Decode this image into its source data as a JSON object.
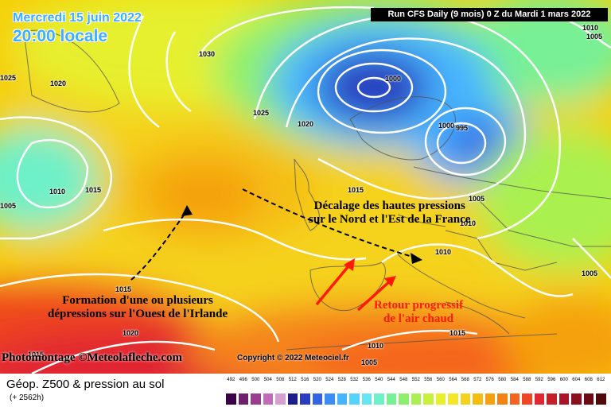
{
  "header": {
    "date": "Mercredi 15 juin 2022",
    "time": "20:00 locale",
    "run": "Run CFS Daily (9 mois) 0 Z du Mardi 1 mars 2022"
  },
  "isobar_labels": [
    "1030",
    "1025",
    "1020",
    "1025",
    "1020",
    "1000",
    "1000",
    "995",
    "1005",
    "1010",
    "1015",
    "1005",
    "1015",
    "1005",
    "1010",
    "1010",
    "1005",
    "1015",
    "1020",
    "1015",
    "1010",
    "1005",
    "1015",
    "1010"
  ],
  "annotations": {
    "depressions": [
      "Formation d'une ou plusieurs",
      "dépressions sur l'Ouest de l'Irlande"
    ],
    "shift": [
      "Décalage des hautes pressions",
      "sur le Nord et l'Est de la France"
    ],
    "warm": [
      "Retour progressif",
      "de l'air chaud"
    ]
  },
  "credits": {
    "photomontage": "Photomontage ©Meteolafleche.com",
    "copyright": "Copyright © 2022 Meteociel.fr"
  },
  "legend": {
    "title": "Géop. Z500 & pression au sol",
    "subtitle": "(+ 2562h)",
    "ticks": [
      "492",
      "496",
      "500",
      "504",
      "508",
      "512",
      "516",
      "520",
      "524",
      "528",
      "532",
      "536",
      "540",
      "544",
      "548",
      "552",
      "556",
      "560",
      "564",
      "568",
      "572",
      "576",
      "580",
      "584",
      "588",
      "592",
      "596",
      "600",
      "604",
      "608",
      "612"
    ],
    "colors": [
      "#3c0048",
      "#6e1f6e",
      "#9b3d8f",
      "#c26bb8",
      "#d8a0d0",
      "#1c1c8c",
      "#2a3cc0",
      "#3464e6",
      "#3b8cf5",
      "#46b4ff",
      "#55d2ff",
      "#66e6f5",
      "#6ef0c8",
      "#78f096",
      "#8cf06e",
      "#aaf050",
      "#c8f03c",
      "#e6f02d",
      "#f5e628",
      "#f5d21e",
      "#f5be14",
      "#f5a00f",
      "#f58214",
      "#f5641e",
      "#f04628",
      "#e12832",
      "#c81e28",
      "#aa1428",
      "#8c0f1e",
      "#6e0a14",
      "#500a0a"
    ]
  }
}
